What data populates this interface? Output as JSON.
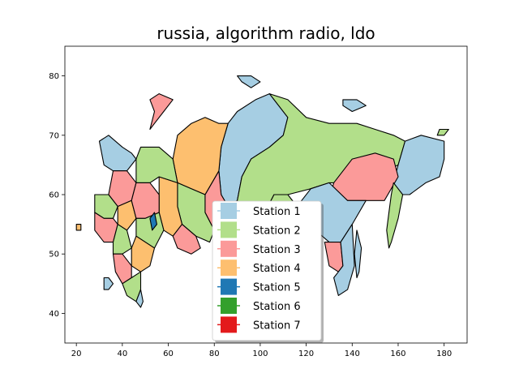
{
  "title": "russia, algorithm radio, ldo",
  "colors": {
    "Station 1": "#a6cee3",
    "Station 2": "#b2df8a",
    "Station 3": "#fb9a99",
    "Station 4": "#fdbf6f",
    "Station 5": "#1f78b4",
    "Station 6": "#33a02c",
    "Station 7": "#e31a1c"
  },
  "chart_data": {
    "type": "map",
    "title": "russia, algorithm radio, ldo",
    "xlim": [
      15,
      190
    ],
    "ylim": [
      35,
      85
    ],
    "x_ticks": [
      20,
      40,
      60,
      80,
      100,
      120,
      140,
      160,
      180
    ],
    "y_ticks": [
      40,
      50,
      60,
      70,
      80
    ],
    "legend": {
      "placement": "lower-center",
      "entries": [
        "Station 1",
        "Station 2",
        "Station 3",
        "Station 4",
        "Station 5",
        "Station 6",
        "Station 7"
      ]
    },
    "regions": [
      {
        "station": "Station 1",
        "lonlat": [
          [
            86,
            72
          ],
          [
            90,
            74
          ],
          [
            98,
            76
          ],
          [
            104,
            77
          ],
          [
            108,
            75
          ],
          [
            112,
            73
          ],
          [
            110,
            70
          ],
          [
            104,
            68
          ],
          [
            96,
            66
          ],
          [
            92,
            63
          ],
          [
            90,
            59
          ],
          [
            86,
            58
          ],
          [
            83,
            60
          ],
          [
            82,
            64
          ],
          [
            83,
            68
          ]
        ]
      },
      {
        "station": "Station 2",
        "lonlat": [
          [
            104,
            77
          ],
          [
            112,
            76
          ],
          [
            120,
            73
          ],
          [
            130,
            72
          ],
          [
            142,
            72
          ],
          [
            150,
            71
          ],
          [
            158,
            70
          ],
          [
            163,
            69
          ],
          [
            160,
            65
          ],
          [
            150,
            63
          ],
          [
            140,
            62
          ],
          [
            130,
            62
          ],
          [
            122,
            61
          ],
          [
            112,
            60
          ],
          [
            106,
            60
          ],
          [
            102,
            57
          ],
          [
            96,
            55
          ],
          [
            92,
            57
          ],
          [
            90,
            59
          ],
          [
            92,
            63
          ],
          [
            96,
            66
          ],
          [
            104,
            68
          ],
          [
            110,
            70
          ],
          [
            112,
            73
          ],
          [
            108,
            75
          ]
        ]
      },
      {
        "station": "Station 1",
        "lonlat": [
          [
            163,
            69
          ],
          [
            170,
            70
          ],
          [
            180,
            69
          ],
          [
            180,
            66
          ],
          [
            178,
            63
          ],
          [
            172,
            62
          ],
          [
            165,
            60
          ],
          [
            160,
            60
          ],
          [
            158,
            62
          ],
          [
            160,
            65
          ]
        ]
      },
      {
        "station": "Station 3",
        "lonlat": [
          [
            132,
            62
          ],
          [
            140,
            66
          ],
          [
            150,
            67
          ],
          [
            158,
            66
          ],
          [
            160,
            63
          ],
          [
            154,
            59
          ],
          [
            146,
            59
          ],
          [
            138,
            59
          ],
          [
            130,
            59
          ]
        ]
      },
      {
        "station": "Station 2",
        "lonlat": [
          [
            158,
            62
          ],
          [
            162,
            60
          ],
          [
            160,
            56
          ],
          [
            157,
            52
          ],
          [
            156,
            51
          ],
          [
            155,
            54
          ],
          [
            156,
            57
          ],
          [
            157,
            60
          ]
        ]
      },
      {
        "station": "Station 1",
        "lonlat": [
          [
            122,
            61
          ],
          [
            130,
            62
          ],
          [
            138,
            59
          ],
          [
            146,
            59
          ],
          [
            140,
            55
          ],
          [
            135,
            52
          ],
          [
            130,
            52
          ],
          [
            124,
            54
          ],
          [
            120,
            56
          ],
          [
            116,
            58
          ]
        ]
      },
      {
        "station": "Station 3",
        "lonlat": [
          [
            128,
            52
          ],
          [
            135,
            52
          ],
          [
            136,
            48
          ],
          [
            134,
            47
          ],
          [
            130,
            48
          ]
        ]
      },
      {
        "station": "Station 1",
        "lonlat": [
          [
            135,
            52
          ],
          [
            140,
            55
          ],
          [
            141,
            48
          ],
          [
            138,
            44
          ],
          [
            134,
            43
          ],
          [
            132,
            46
          ],
          [
            134,
            47
          ],
          [
            136,
            48
          ]
        ]
      },
      {
        "station": "Station 1",
        "lonlat": [
          [
            142,
            54
          ],
          [
            144,
            51
          ],
          [
            143,
            47
          ],
          [
            142,
            46
          ],
          [
            141,
            50
          ]
        ]
      },
      {
        "station": "Station 2",
        "lonlat": [
          [
            96,
            55
          ],
          [
            102,
            57
          ],
          [
            106,
            60
          ],
          [
            112,
            60
          ],
          [
            116,
            58
          ],
          [
            120,
            56
          ],
          [
            124,
            54
          ],
          [
            118,
            50
          ],
          [
            112,
            50
          ],
          [
            106,
            51
          ],
          [
            100,
            52
          ],
          [
            96,
            51
          ]
        ]
      },
      {
        "station": "Station 1",
        "lonlat": [
          [
            100,
            52
          ],
          [
            106,
            51
          ],
          [
            110,
            50
          ],
          [
            106,
            49
          ],
          [
            100,
            50
          ]
        ]
      },
      {
        "station": "Station 3",
        "lonlat": [
          [
            82,
            64
          ],
          [
            83,
            60
          ],
          [
            86,
            58
          ],
          [
            90,
            59
          ],
          [
            92,
            57
          ],
          [
            96,
            55
          ],
          [
            96,
            51
          ],
          [
            92,
            50
          ],
          [
            88,
            50
          ],
          [
            84,
            52
          ],
          [
            80,
            54
          ],
          [
            76,
            57
          ],
          [
            76,
            60
          ]
        ]
      },
      {
        "station": "Station 4",
        "lonlat": [
          [
            70,
            72
          ],
          [
            76,
            73
          ],
          [
            82,
            72
          ],
          [
            86,
            72
          ],
          [
            83,
            68
          ],
          [
            82,
            64
          ],
          [
            76,
            60
          ],
          [
            70,
            61
          ],
          [
            64,
            62
          ],
          [
            62,
            66
          ],
          [
            64,
            70
          ]
        ]
      },
      {
        "station": "Station 2",
        "lonlat": [
          [
            76,
            60
          ],
          [
            76,
            57
          ],
          [
            80,
            54
          ],
          [
            78,
            52
          ],
          [
            72,
            53
          ],
          [
            66,
            55
          ],
          [
            64,
            58
          ],
          [
            64,
            62
          ],
          [
            70,
            61
          ]
        ]
      },
      {
        "station": "Station 4",
        "lonlat": [
          [
            56,
            63
          ],
          [
            64,
            62
          ],
          [
            64,
            58
          ],
          [
            66,
            55
          ],
          [
            62,
            53
          ],
          [
            58,
            54
          ],
          [
            56,
            57
          ],
          [
            56,
            60
          ]
        ]
      },
      {
        "station": "Station 3",
        "lonlat": [
          [
            66,
            55
          ],
          [
            72,
            53
          ],
          [
            74,
            51
          ],
          [
            70,
            50
          ],
          [
            64,
            51
          ],
          [
            62,
            53
          ]
        ]
      },
      {
        "station": "Station 2",
        "lonlat": [
          [
            48,
            68
          ],
          [
            56,
            68
          ],
          [
            62,
            66
          ],
          [
            64,
            62
          ],
          [
            56,
            63
          ],
          [
            52,
            62
          ],
          [
            46,
            62
          ],
          [
            46,
            66
          ]
        ]
      },
      {
        "station": "Station 1",
        "lonlat": [
          [
            30,
            69
          ],
          [
            34,
            70
          ],
          [
            40,
            68
          ],
          [
            44,
            67
          ],
          [
            46,
            66
          ],
          [
            42,
            64
          ],
          [
            36,
            64
          ],
          [
            32,
            65
          ]
        ]
      },
      {
        "station": "Station 3",
        "lonlat": [
          [
            36,
            64
          ],
          [
            42,
            64
          ],
          [
            46,
            62
          ],
          [
            44,
            59
          ],
          [
            38,
            58
          ],
          [
            34,
            60
          ]
        ]
      },
      {
        "station": "Station 2",
        "lonlat": [
          [
            28,
            60
          ],
          [
            34,
            60
          ],
          [
            38,
            58
          ],
          [
            36,
            56
          ],
          [
            32,
            56
          ],
          [
            28,
            57
          ]
        ]
      },
      {
        "station": "Station 4",
        "lonlat": [
          [
            38,
            58
          ],
          [
            44,
            59
          ],
          [
            46,
            56
          ],
          [
            42,
            54
          ],
          [
            38,
            55
          ]
        ]
      },
      {
        "station": "Station 3",
        "lonlat": [
          [
            46,
            62
          ],
          [
            52,
            62
          ],
          [
            56,
            60
          ],
          [
            56,
            57
          ],
          [
            50,
            56
          ],
          [
            46,
            56
          ],
          [
            44,
            59
          ]
        ]
      },
      {
        "station": "Station 2",
        "lonlat": [
          [
            46,
            56
          ],
          [
            50,
            56
          ],
          [
            56,
            57
          ],
          [
            58,
            54
          ],
          [
            54,
            51
          ],
          [
            50,
            52
          ],
          [
            46,
            53
          ]
        ]
      },
      {
        "station": "Station 5",
        "lonlat": [
          [
            52,
            56
          ],
          [
            54,
            57
          ],
          [
            55,
            55
          ],
          [
            53,
            54
          ]
        ]
      },
      {
        "station": "Station 3",
        "lonlat": [
          [
            28,
            57
          ],
          [
            32,
            56
          ],
          [
            36,
            56
          ],
          [
            38,
            55
          ],
          [
            36,
            52
          ],
          [
            32,
            52
          ],
          [
            28,
            54
          ]
        ]
      },
      {
        "station": "Station 2",
        "lonlat": [
          [
            36,
            52
          ],
          [
            38,
            55
          ],
          [
            42,
            54
          ],
          [
            44,
            51
          ],
          [
            40,
            50
          ],
          [
            36,
            50
          ]
        ]
      },
      {
        "station": "Station 4",
        "lonlat": [
          [
            44,
            51
          ],
          [
            46,
            53
          ],
          [
            50,
            52
          ],
          [
            54,
            51
          ],
          [
            52,
            48
          ],
          [
            48,
            47
          ],
          [
            44,
            48
          ]
        ]
      },
      {
        "station": "Station 3",
        "lonlat": [
          [
            36,
            50
          ],
          [
            40,
            50
          ],
          [
            44,
            48
          ],
          [
            44,
            46
          ],
          [
            40,
            45
          ],
          [
            37,
            47
          ]
        ]
      },
      {
        "station": "Station 2",
        "lonlat": [
          [
            40,
            45
          ],
          [
            44,
            46
          ],
          [
            48,
            47
          ],
          [
            48,
            44
          ],
          [
            46,
            42
          ],
          [
            42,
            43
          ]
        ]
      },
      {
        "station": "Station 1",
        "lonlat": [
          [
            46,
            42
          ],
          [
            48,
            44
          ],
          [
            49,
            42
          ],
          [
            48,
            41
          ]
        ]
      },
      {
        "station": "Station 1",
        "lonlat": [
          [
            32,
            46
          ],
          [
            34,
            46
          ],
          [
            36,
            45
          ],
          [
            34,
            44
          ],
          [
            32,
            44
          ]
        ]
      },
      {
        "station": "Station 4",
        "lonlat": [
          [
            20,
            55
          ],
          [
            22,
            55
          ],
          [
            22,
            54
          ],
          [
            20,
            54
          ]
        ]
      },
      {
        "station": "Station 3",
        "lonlat": [
          [
            52,
            76
          ],
          [
            56,
            77
          ],
          [
            62,
            76
          ],
          [
            58,
            74
          ],
          [
            54,
            72
          ],
          [
            52,
            71
          ],
          [
            54,
            74
          ]
        ]
      },
      {
        "station": "Station 1",
        "lonlat": [
          [
            90,
            80
          ],
          [
            96,
            80
          ],
          [
            100,
            79
          ],
          [
            96,
            78
          ],
          [
            92,
            79
          ]
        ]
      },
      {
        "station": "Station 1",
        "lonlat": [
          [
            136,
            76
          ],
          [
            142,
            76
          ],
          [
            146,
            75
          ],
          [
            140,
            74
          ],
          [
            136,
            75
          ]
        ]
      },
      {
        "station": "Station 2",
        "lonlat": [
          [
            178,
            71
          ],
          [
            182,
            71
          ],
          [
            180,
            70
          ],
          [
            177,
            70
          ]
        ]
      }
    ]
  }
}
